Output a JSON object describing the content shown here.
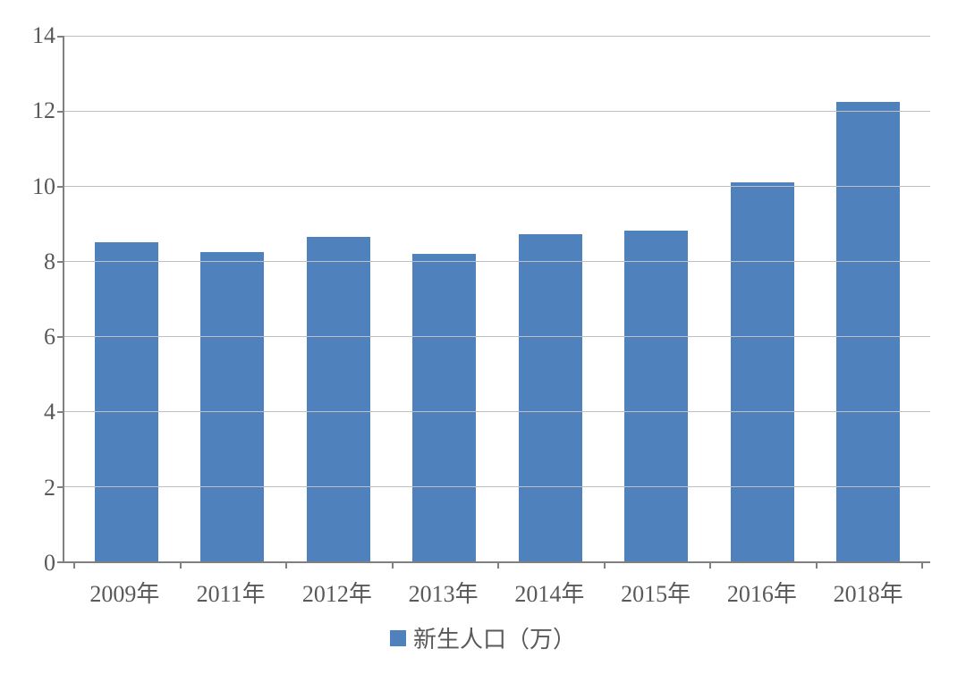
{
  "chart": {
    "type": "bar",
    "categories": [
      "2009年",
      "2011年",
      "2012年",
      "2013年",
      "2014年",
      "2015年",
      "2016年",
      "2018年"
    ],
    "values": [
      8.5,
      8.25,
      8.65,
      8.18,
      8.72,
      8.8,
      10.1,
      12.25
    ],
    "bar_color": "#4f81bd",
    "ylim": [
      0,
      14
    ],
    "ytick_step": 2,
    "yticks": [
      "0",
      "2",
      "4",
      "6",
      "8",
      "10",
      "12",
      "14"
    ],
    "grid_color": "#bfbfbf",
    "axis_color": "#808080",
    "tick_text_color": "#595959",
    "tick_fontsize": 26,
    "x_label_fontsize": 26,
    "legend_fontsize": 26,
    "legend_label": "新生人口（万）",
    "background_color": "#ffffff",
    "bar_width": 0.6
  }
}
